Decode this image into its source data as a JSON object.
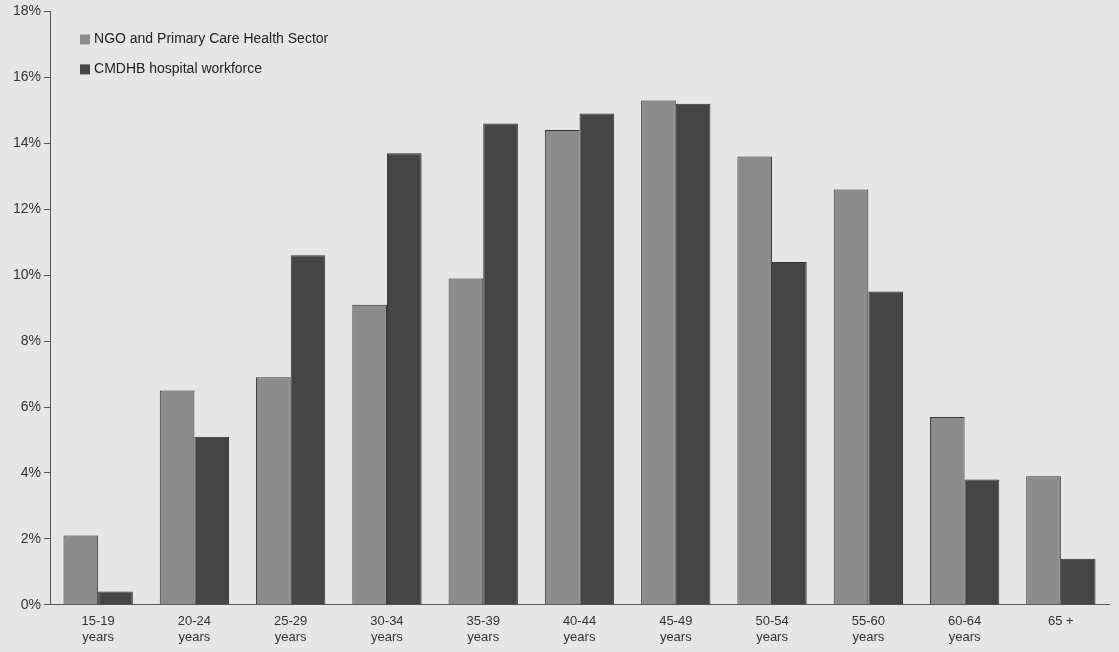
{
  "chart_data": {
    "type": "bar",
    "categories": [
      "15-19\nyears",
      "20-24\nyears",
      "25-29\nyears",
      "30-34\nyears",
      "35-39\nyears",
      "40-44\nyears",
      "45-49\nyears",
      "50-54\nyears",
      "55-60\nyears",
      "60-64\nyears",
      "65 +"
    ],
    "series": [
      {
        "name": "NGO and Primary Care Health Sector",
        "color": "#8c8c8c",
        "values": [
          2.1,
          6.5,
          6.9,
          9.1,
          9.9,
          14.4,
          15.3,
          13.6,
          12.6,
          5.7,
          3.9
        ]
      },
      {
        "name": "CMDHB hospital workforce",
        "color": "#454545",
        "values": [
          0.4,
          5.1,
          10.6,
          13.7,
          14.6,
          14.9,
          15.2,
          10.4,
          9.5,
          3.8,
          1.4
        ]
      }
    ],
    "ylim": [
      0,
      18
    ],
    "yticks": [
      {
        "value": 0,
        "label": "0%"
      },
      {
        "value": 2,
        "label": "2%"
      },
      {
        "value": 4,
        "label": "4%"
      },
      {
        "value": 6,
        "label": "6%"
      },
      {
        "value": 8,
        "label": "8%"
      },
      {
        "value": 10,
        "label": "10%"
      },
      {
        "value": 12,
        "label": "12%"
      },
      {
        "value": 14,
        "label": "14%"
      },
      {
        "value": 16,
        "label": "16%"
      },
      {
        "value": 18,
        "label": "18%"
      }
    ],
    "grid": false,
    "legend": "top left"
  }
}
